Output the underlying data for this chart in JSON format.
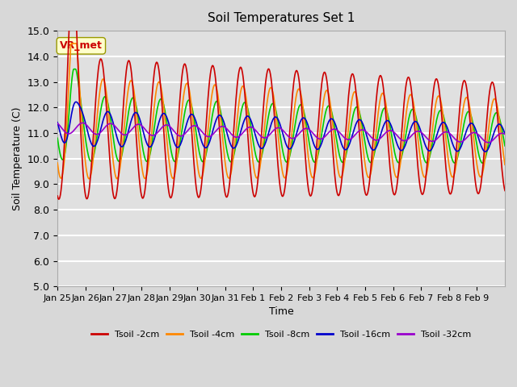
{
  "title": "Soil Temperatures Set 1",
  "xlabel": "Time",
  "ylabel": "Soil Temperature (C)",
  "ylim": [
    5.0,
    15.0
  ],
  "yticks": [
    5.0,
    6.0,
    7.0,
    8.0,
    9.0,
    10.0,
    11.0,
    12.0,
    13.0,
    14.0,
    15.0
  ],
  "xtick_labels": [
    "Jan 25",
    "Jan 26",
    "Jan 27",
    "Jan 28",
    "Jan 29",
    "Jan 30",
    "Jan 31",
    "Feb 1",
    "Feb 2",
    "Feb 3",
    "Feb 4",
    "Feb 5",
    "Feb 6",
    "Feb 7",
    "Feb 8",
    "Feb 9"
  ],
  "colors": {
    "Tsoil -2cm": "#cc0000",
    "Tsoil -4cm": "#ff8800",
    "Tsoil -8cm": "#00cc00",
    "Tsoil -16cm": "#0000cc",
    "Tsoil -32cm": "#9900cc"
  },
  "bg_color": "#e0e0e0",
  "grid_color": "#ffffff",
  "annotation_text": "VR_met",
  "annotation_color": "#cc0000",
  "annotation_bg": "#ffffcc",
  "legend_labels": [
    "Tsoil -2cm",
    "Tsoil -4cm",
    "Tsoil -8cm",
    "Tsoil -16cm",
    "Tsoil -32cm"
  ],
  "n_days": 16,
  "n_labels": 16
}
